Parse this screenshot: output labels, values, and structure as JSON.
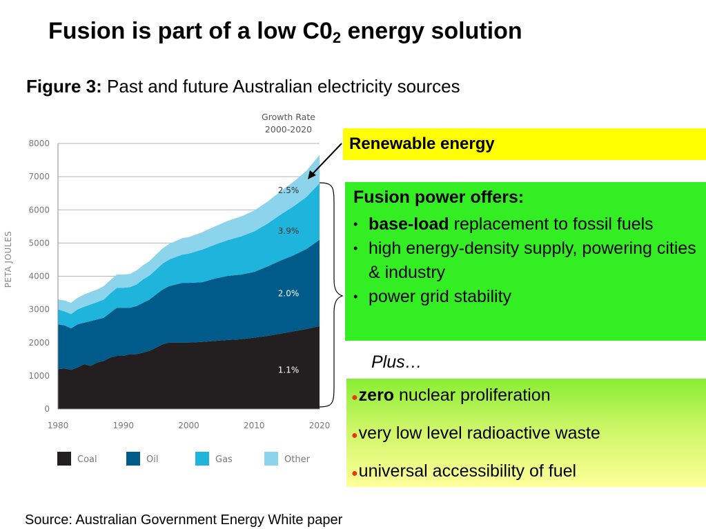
{
  "slide": {
    "title_main": "Fusion is part of a low C0",
    "title_sub": "2",
    "title_tail": " energy solution",
    "figure_label": "Figure 3:",
    "figure_caption": "Past and future Australian electricity sources",
    "source": "Source: Australian Government Energy White paper"
  },
  "callouts": {
    "renewable": "Renewable energy",
    "fusion_heading": "Fusion power offers:",
    "fusion_items": [
      {
        "bold": "base-load",
        "text": " replacement to fossil fuels"
      },
      {
        "bold": "",
        "text": "high energy-density supply, powering cities & industry"
      },
      {
        "bold": "",
        "text": "power grid stability"
      }
    ],
    "plus": "Plus…",
    "extra_items": [
      {
        "bold": "zero",
        "text": " nuclear proliferation"
      },
      {
        "bold": "",
        "text": "very low level radioactive waste"
      },
      {
        "bold": "",
        "text": "universal accessibility of fuel"
      }
    ],
    "bullet_color": "#ee3311"
  },
  "chart_data": {
    "type": "area",
    "stacked": true,
    "ylabel": "PETA JOULES",
    "growth_header": [
      "Growth Rate",
      "2000-2020"
    ],
    "ylim": [
      0,
      8000
    ],
    "xlim": [
      1980,
      2020
    ],
    "yticks": [
      "0",
      "1000",
      "2000",
      "3000",
      "4000",
      "5000",
      "6000",
      "7000",
      "8000"
    ],
    "xticks": [
      "1980",
      "1990",
      "2000",
      "2010",
      "2020"
    ],
    "x": [
      1980,
      1981,
      1982,
      1983,
      1984,
      1985,
      1986,
      1987,
      1988,
      1989,
      1990,
      1991,
      1992,
      1993,
      1994,
      1995,
      1996,
      1997,
      1998,
      1999,
      2000,
      2002,
      2004,
      2006,
      2008,
      2010,
      2012,
      2014,
      2016,
      2018,
      2020
    ],
    "series": [
      {
        "name": "Coal",
        "color": "#231f20",
        "growth": "1.1%",
        "values": [
          1200,
          1220,
          1180,
          1250,
          1350,
          1300,
          1400,
          1450,
          1550,
          1600,
          1600,
          1650,
          1650,
          1700,
          1750,
          1850,
          1950,
          2000,
          2000,
          2000,
          2000,
          2020,
          2050,
          2080,
          2100,
          2150,
          2200,
          2270,
          2340,
          2410,
          2500
        ]
      },
      {
        "name": "Oil",
        "color": "#005a8a",
        "growth": "2.0%",
        "values": [
          1350,
          1300,
          1250,
          1300,
          1250,
          1350,
          1300,
          1300,
          1350,
          1450,
          1450,
          1400,
          1450,
          1500,
          1550,
          1600,
          1650,
          1700,
          1750,
          1800,
          1800,
          1800,
          1880,
          1930,
          1950,
          1980,
          2090,
          2200,
          2290,
          2410,
          2600
        ]
      },
      {
        "name": "Gas",
        "color": "#1eb4dc",
        "growth": "3.9%",
        "values": [
          450,
          420,
          430,
          450,
          480,
          500,
          520,
          550,
          580,
          600,
          600,
          620,
          650,
          700,
          720,
          750,
          780,
          800,
          830,
          850,
          880,
          980,
          1020,
          1080,
          1150,
          1220,
          1290,
          1380,
          1470,
          1570,
          1700
        ]
      },
      {
        "name": "Other",
        "color": "#8cd4ec",
        "growth": "2.5%",
        "values": [
          300,
          330,
          340,
          350,
          370,
          380,
          380,
          400,
          400,
          400,
          400,
          400,
          420,
          430,
          440,
          450,
          460,
          470,
          480,
          500,
          500,
          520,
          550,
          580,
          600,
          630,
          660,
          700,
          740,
          790,
          850
        ]
      }
    ],
    "legend_position": "bottom",
    "grid": true
  }
}
